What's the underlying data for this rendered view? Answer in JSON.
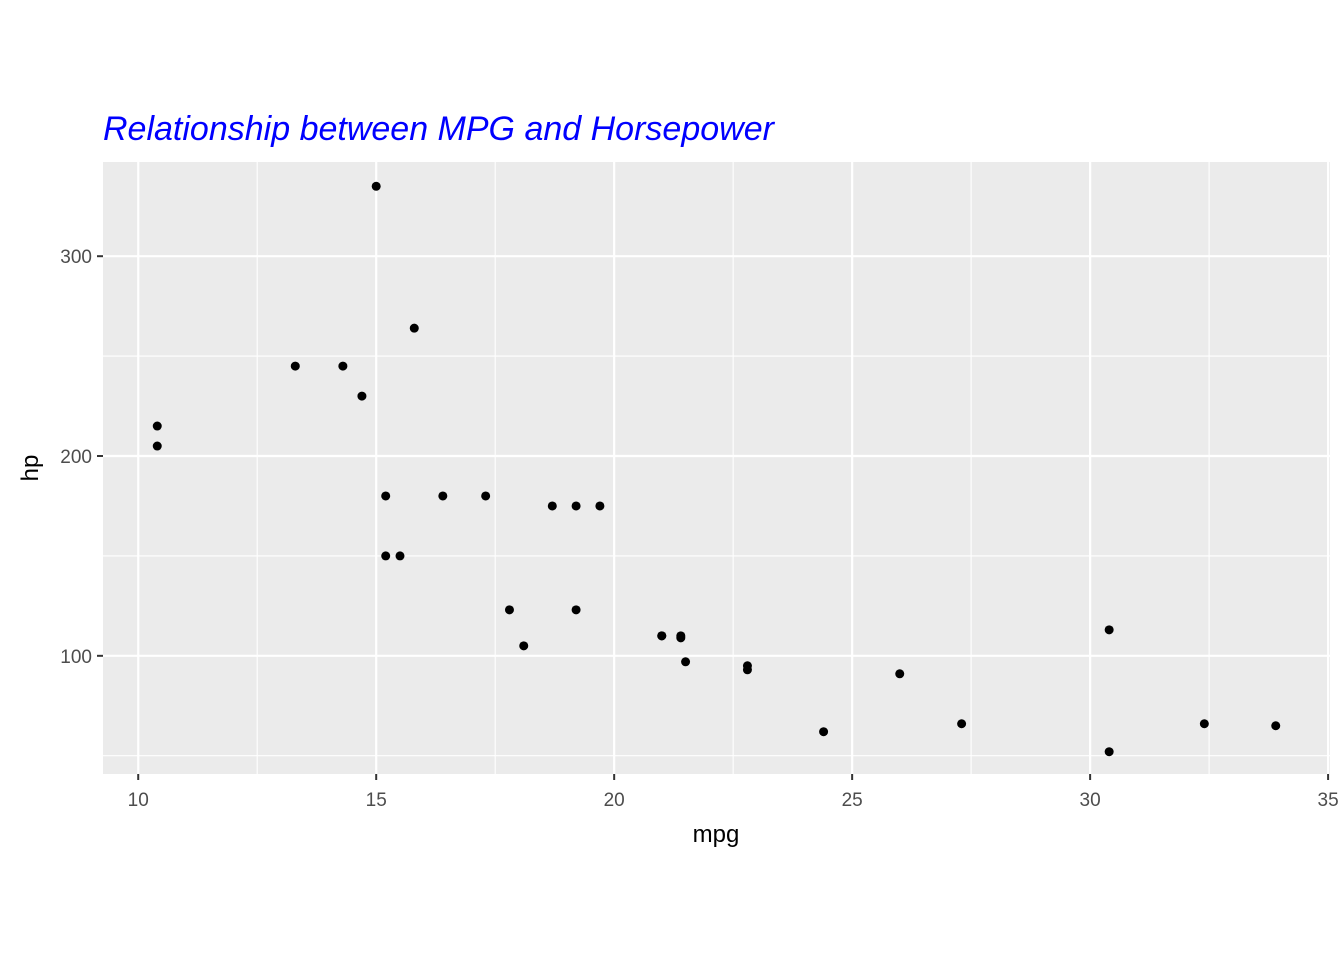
{
  "chart_data": {
    "type": "scatter",
    "title": "Relationship between MPG and Horsepower",
    "title_color": "#0000ff",
    "xlabel": "mpg",
    "ylabel": "hp",
    "xlim": [
      9.26,
      35.04
    ],
    "ylim": [
      40.85,
      347.15
    ],
    "x_ticks": [
      10,
      15,
      20,
      25,
      30,
      35
    ],
    "x_tick_labels": [
      "10",
      "15",
      "20",
      "25",
      "30",
      "35"
    ],
    "y_ticks": [
      100,
      200,
      300
    ],
    "y_tick_labels": [
      "100",
      "200",
      "300"
    ],
    "x_minor_ticks": [
      12.5,
      17.5,
      22.5,
      27.5,
      32.5
    ],
    "y_minor_ticks": [
      50,
      150,
      250
    ],
    "grid": true,
    "panel_background": "#ebebeb",
    "grid_color": "#ffffff",
    "point_color": "#000000",
    "points": [
      {
        "x": 21.0,
        "y": 110
      },
      {
        "x": 21.0,
        "y": 110
      },
      {
        "x": 22.8,
        "y": 93
      },
      {
        "x": 21.4,
        "y": 110
      },
      {
        "x": 18.7,
        "y": 175
      },
      {
        "x": 18.1,
        "y": 105
      },
      {
        "x": 14.3,
        "y": 245
      },
      {
        "x": 24.4,
        "y": 62
      },
      {
        "x": 22.8,
        "y": 95
      },
      {
        "x": 19.2,
        "y": 123
      },
      {
        "x": 17.8,
        "y": 123
      },
      {
        "x": 16.4,
        "y": 180
      },
      {
        "x": 17.3,
        "y": 180
      },
      {
        "x": 15.2,
        "y": 180
      },
      {
        "x": 10.4,
        "y": 205
      },
      {
        "x": 10.4,
        "y": 215
      },
      {
        "x": 14.7,
        "y": 230
      },
      {
        "x": 32.4,
        "y": 66
      },
      {
        "x": 30.4,
        "y": 52
      },
      {
        "x": 33.9,
        "y": 65
      },
      {
        "x": 21.5,
        "y": 97
      },
      {
        "x": 15.5,
        "y": 150
      },
      {
        "x": 15.2,
        "y": 150
      },
      {
        "x": 13.3,
        "y": 245
      },
      {
        "x": 19.2,
        "y": 175
      },
      {
        "x": 27.3,
        "y": 66
      },
      {
        "x": 26.0,
        "y": 91
      },
      {
        "x": 30.4,
        "y": 113
      },
      {
        "x": 15.8,
        "y": 264
      },
      {
        "x": 19.7,
        "y": 175
      },
      {
        "x": 15.0,
        "y": 335
      },
      {
        "x": 21.4,
        "y": 109
      }
    ]
  }
}
